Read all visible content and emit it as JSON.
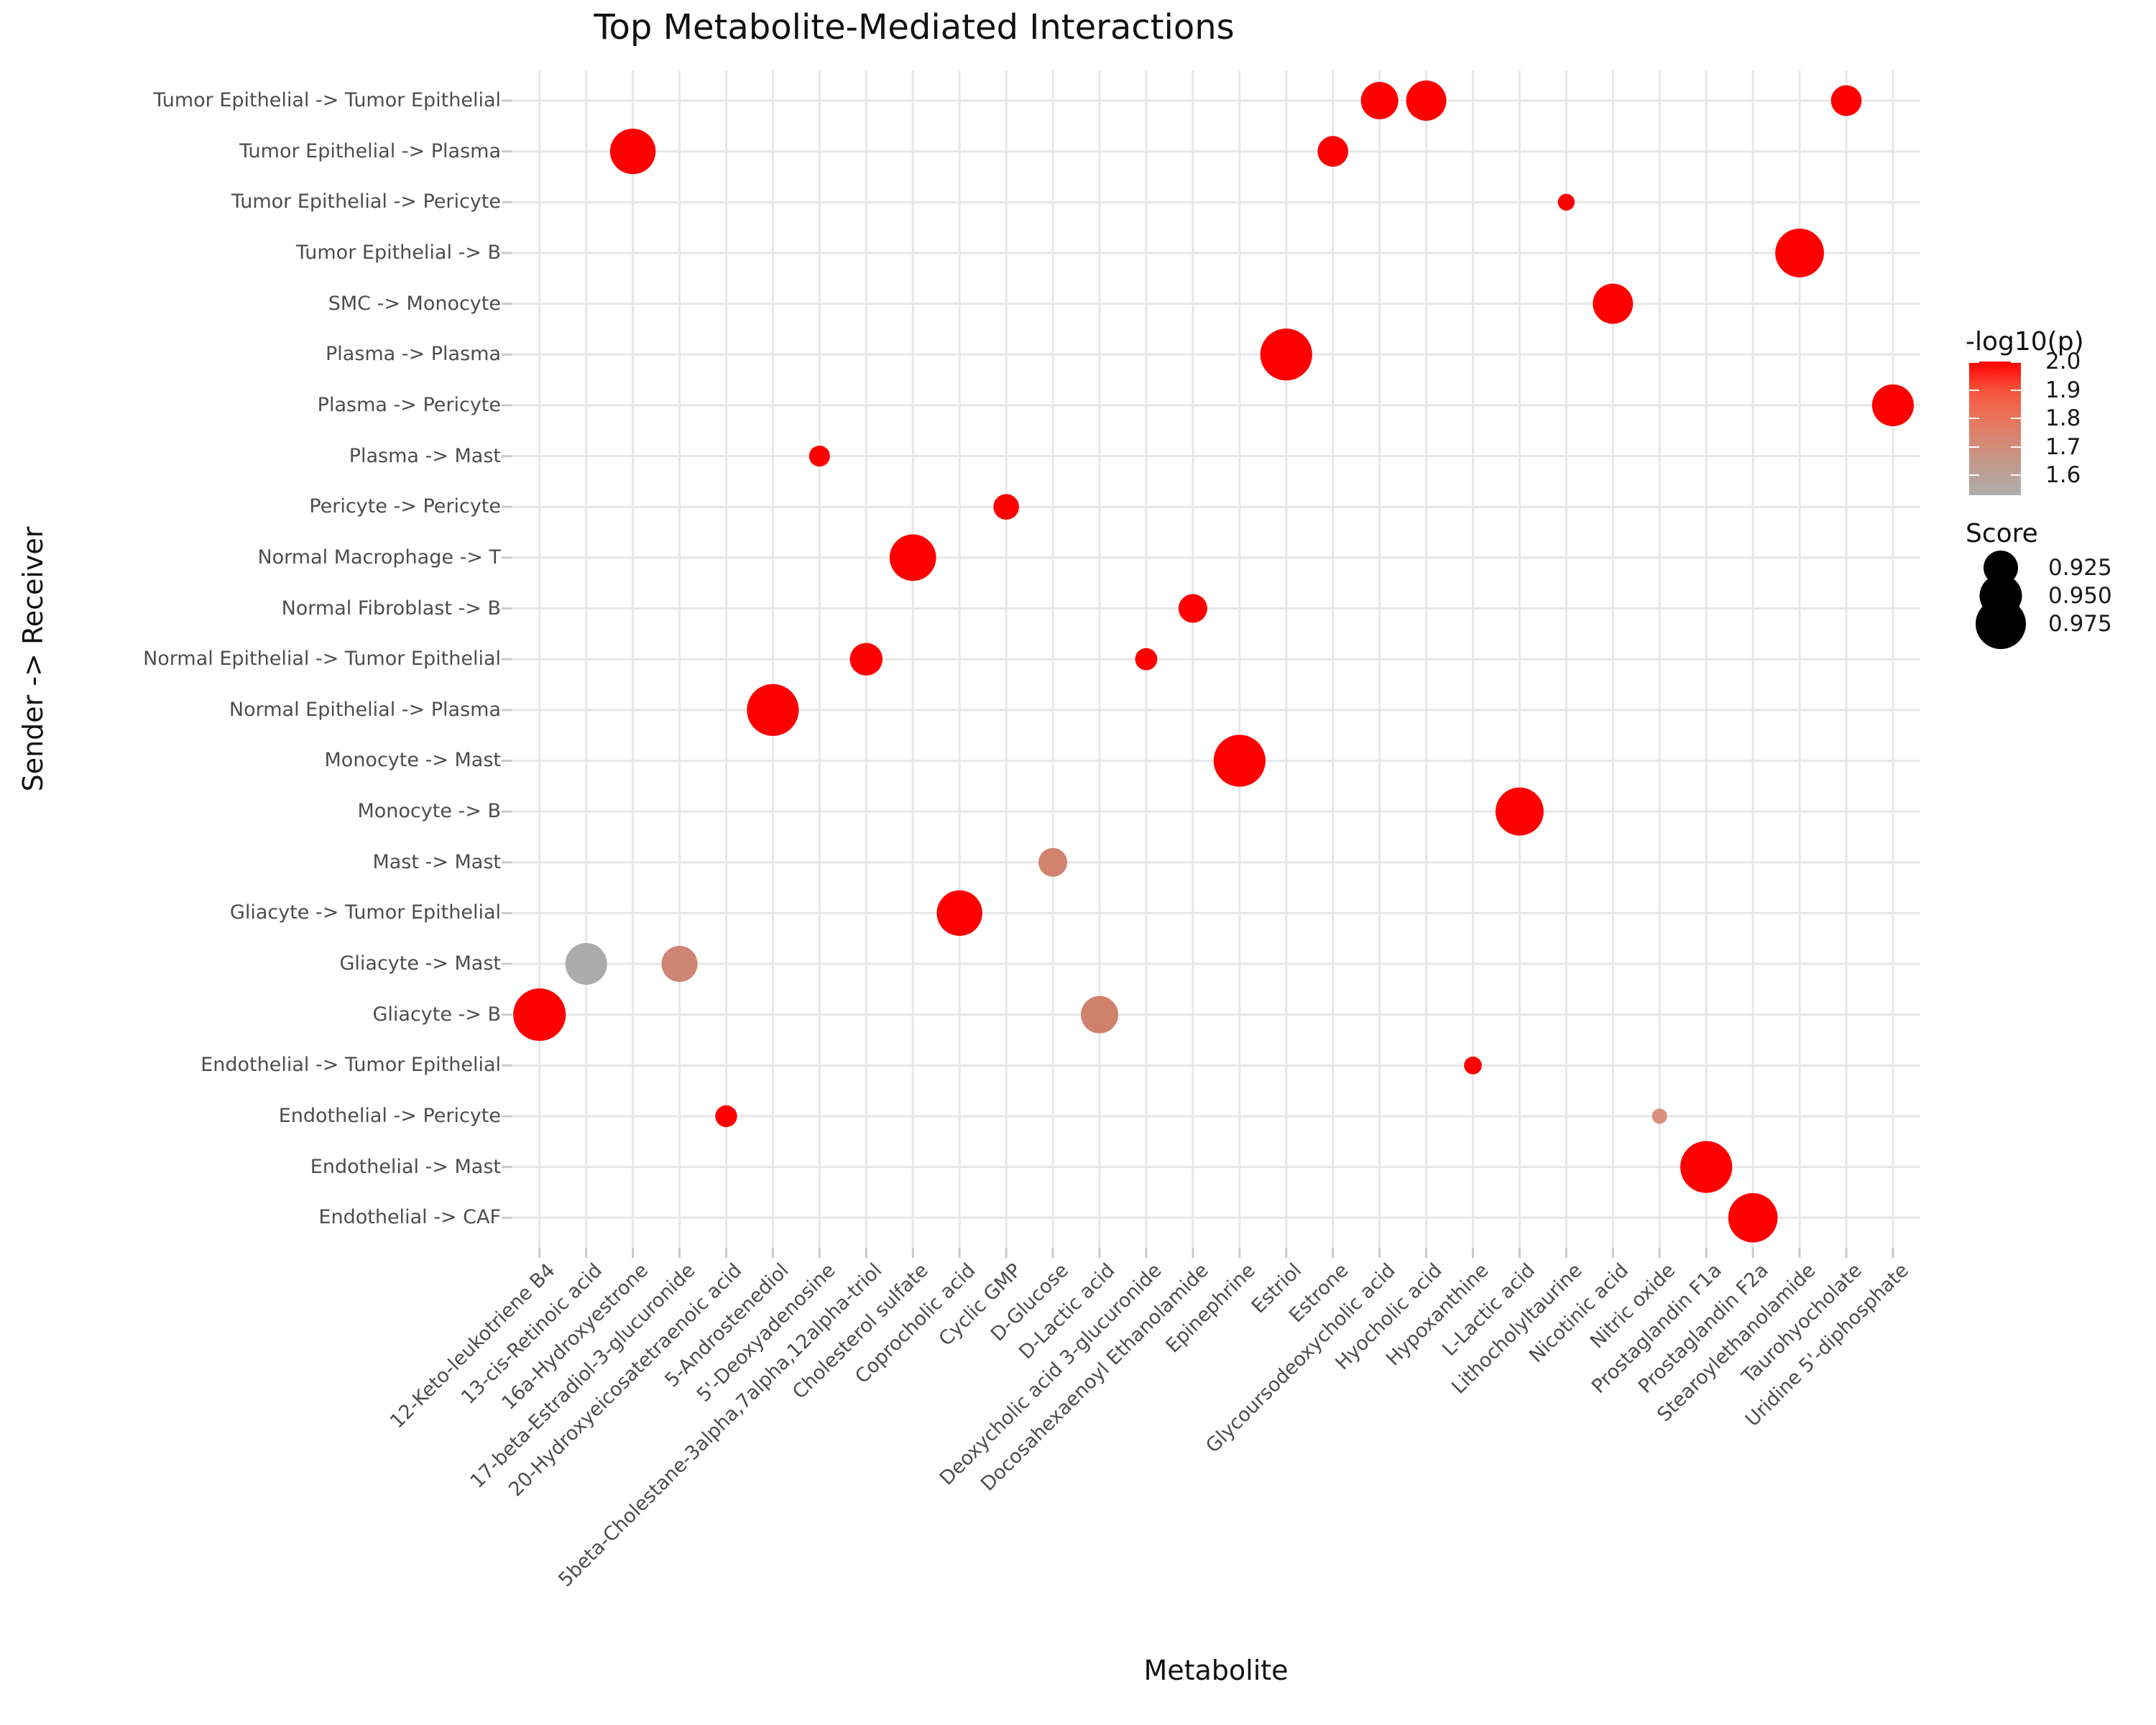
{
  "chart_data": {
    "type": "scatter",
    "title": "Top Metabolite-Mediated Interactions",
    "xlabel": "Metabolite",
    "ylabel": "Sender -> Receiver",
    "grid": true,
    "background": "#ffffff",
    "grid_color": "#e7e7e7",
    "tick_color": "#c9c9c9",
    "accent_red": "#ff0000",
    "x_categories": [
      "12-Keto-leukotriene B4",
      "13-cis-Retinoic acid",
      "16a-Hydroxyestrone",
      "17-beta-Estradiol-3-glucuronide",
      "20-Hydroxyeicosatetraenoic acid",
      "5-Androstenediol",
      "5'-Deoxyadenosine",
      "5beta-Cholestane-3alpha,7alpha,12alpha-triol",
      "Cholesterol sulfate",
      "Coprocholic acid",
      "Cyclic GMP",
      "D-Glucose",
      "D-Lactic acid",
      "Deoxycholic acid 3-glucuronide",
      "Docosahexaenoyl Ethanolamide",
      "Epinephrine",
      "Estriol",
      "Estrone",
      "Glycoursodeoxycholic acid",
      "Hyocholic acid",
      "Hypoxanthine",
      "L-Lactic acid",
      "Lithocholyltaurine",
      "Nicotinic acid",
      "Nitric oxide",
      "Prostaglandin F1a",
      "Prostaglandin F2a",
      "Stearoylethanolamide",
      "Taurohyocholate",
      "Uridine 5'-diphosphate"
    ],
    "y_categories": [
      "Tumor Epithelial -> Tumor Epithelial",
      "Tumor Epithelial -> Plasma",
      "Tumor Epithelial -> Pericyte",
      "Tumor Epithelial -> B",
      "SMC -> Monocyte",
      "Plasma -> Plasma",
      "Plasma -> Pericyte",
      "Plasma -> Mast",
      "Pericyte -> Pericyte",
      "Normal Macrophage -> T",
      "Normal Fibroblast -> B",
      "Normal Epithelial -> Tumor Epithelial",
      "Normal Epithelial -> Plasma",
      "Monocyte -> Mast",
      "Monocyte -> B",
      "Mast -> Mast",
      "Gliacyte -> Tumor Epithelial",
      "Gliacyte -> Mast",
      "Gliacyte -> B",
      "Endothelial -> Tumor Epithelial",
      "Endothelial -> Pericyte",
      "Endothelial -> Mast",
      "Endothelial -> CAF"
    ],
    "points": [
      {
        "metabolite": "12-Keto-leukotriene B4",
        "pair": "Gliacyte -> B",
        "score": 0.982,
        "neglog10p": 2.0,
        "color": "#ff0000"
      },
      {
        "metabolite": "13-cis-Retinoic acid",
        "pair": "Gliacyte -> Mast",
        "score": 0.948,
        "neglog10p": 1.53,
        "color": "#ababab"
      },
      {
        "metabolite": "16a-Hydroxyestrone",
        "pair": "Tumor Epithelial -> Plasma",
        "score": 0.96,
        "neglog10p": 2.0,
        "color": "#ff0000"
      },
      {
        "metabolite": "17-beta-Estradiol-3-glucuronide",
        "pair": "Gliacyte -> Mast",
        "score": 0.93,
        "neglog10p": 1.63,
        "color": "#cd8673"
      },
      {
        "metabolite": "20-Hydroxyeicosatetraenoic acid",
        "pair": "Endothelial -> Pericyte",
        "score": 0.885,
        "neglog10p": 2.0,
        "color": "#ff0000"
      },
      {
        "metabolite": "5-Androstenediol",
        "pair": "Normal Epithelial -> Plasma",
        "score": 0.98,
        "neglog10p": 2.0,
        "color": "#ff0000"
      },
      {
        "metabolite": "5'-Deoxyadenosine",
        "pair": "Plasma -> Mast",
        "score": 0.882,
        "neglog10p": 2.0,
        "color": "#ff0000"
      },
      {
        "metabolite": "5beta-Cholestane-3alpha,7alpha,12alpha-triol",
        "pair": "Normal Epithelial -> Tumor Epithelial",
        "score": 0.919,
        "neglog10p": 2.0,
        "color": "#ff0000"
      },
      {
        "metabolite": "Cholesterol sulfate",
        "pair": "Normal Macrophage -> T",
        "score": 0.963,
        "neglog10p": 2.0,
        "color": "#ff0000"
      },
      {
        "metabolite": "Coprocholic acid",
        "pair": "Gliacyte -> Tumor Epithelial",
        "score": 0.96,
        "neglog10p": 2.0,
        "color": "#ff0000"
      },
      {
        "metabolite": "Cyclic GMP",
        "pair": "Pericyte -> Pericyte",
        "score": 0.897,
        "neglog10p": 2.0,
        "color": "#ff0000"
      },
      {
        "metabolite": "D-Glucose",
        "pair": "Mast -> Mast",
        "score": 0.907,
        "neglog10p": 1.64,
        "color": "#d28370"
      },
      {
        "metabolite": "D-Lactic acid",
        "pair": "Gliacyte -> B",
        "score": 0.934,
        "neglog10p": 1.64,
        "color": "#d0816b"
      },
      {
        "metabolite": "Deoxycholic acid 3-glucuronide",
        "pair": "Normal Epithelial -> Tumor Epithelial",
        "score": 0.886,
        "neglog10p": 2.0,
        "color": "#ff0000"
      },
      {
        "metabolite": "Docosahexaenoyl Ethanolamide",
        "pair": "Normal Fibroblast -> B",
        "score": 0.907,
        "neglog10p": 2.0,
        "color": "#ff0000"
      },
      {
        "metabolite": "Epinephrine",
        "pair": "Monocyte -> Mast",
        "score": 0.98,
        "neglog10p": 2.0,
        "color": "#ff0000"
      },
      {
        "metabolite": "Estriol",
        "pair": "Plasma -> Plasma",
        "score": 0.98,
        "neglog10p": 2.0,
        "color": "#ff0000"
      },
      {
        "metabolite": "Estrone",
        "pair": "Tumor Epithelial -> Plasma",
        "score": 0.913,
        "neglog10p": 2.0,
        "color": "#ff0000"
      },
      {
        "metabolite": "Glycoursodeoxycholic acid",
        "pair": "Tumor Epithelial -> Tumor Epithelial",
        "score": 0.934,
        "neglog10p": 2.0,
        "color": "#ff0000"
      },
      {
        "metabolite": "Hyocholic acid",
        "pair": "Tumor Epithelial -> Tumor Epithelial",
        "score": 0.943,
        "neglog10p": 2.0,
        "color": "#ff0000"
      },
      {
        "metabolite": "Hypoxanthine",
        "pair": "Endothelial -> Tumor Epithelial",
        "score": 0.872,
        "neglog10p": 2.0,
        "color": "#ff0000"
      },
      {
        "metabolite": "L-Lactic acid",
        "pair": "Monocyte -> B",
        "score": 0.968,
        "neglog10p": 2.0,
        "color": "#ff0000"
      },
      {
        "metabolite": "Lithocholyltaurine",
        "pair": "Tumor Epithelial -> Pericyte",
        "score": 0.869,
        "neglog10p": 2.0,
        "color": "#ff0000"
      },
      {
        "metabolite": "Nicotinic acid",
        "pair": "SMC -> Monocyte",
        "score": 0.943,
        "neglog10p": 2.0,
        "color": "#ff0000"
      },
      {
        "metabolite": "Nitric oxide",
        "pair": "Endothelial -> Pericyte",
        "score": 0.864,
        "neglog10p": 1.62,
        "color": "#d9917e"
      },
      {
        "metabolite": "Prostaglandin F1a",
        "pair": "Endothelial -> Mast",
        "score": 0.98,
        "neglog10p": 2.0,
        "color": "#ff0000"
      },
      {
        "metabolite": "Prostaglandin F2a",
        "pair": "Endothelial -> CAF",
        "score": 0.972,
        "neglog10p": 2.0,
        "color": "#ff0000"
      },
      {
        "metabolite": "Stearoylethanolamide",
        "pair": "Tumor Epithelial -> B",
        "score": 0.97,
        "neglog10p": 2.0,
        "color": "#ff0000"
      },
      {
        "metabolite": "Taurohyocholate",
        "pair": "Tumor Epithelial -> Tumor Epithelial",
        "score": 0.913,
        "neglog10p": 2.0,
        "color": "#ff0000"
      },
      {
        "metabolite": "Uridine 5'-diphosphate",
        "pair": "Plasma -> Pericyte",
        "score": 0.948,
        "neglog10p": 2.0,
        "color": "#ff0000"
      }
    ],
    "legend": {
      "position": "right",
      "color": {
        "title": "-log10(p)",
        "ticks": [
          {
            "label": "2.0",
            "value": 2.0
          },
          {
            "label": "1.9",
            "value": 1.9
          },
          {
            "label": "1.8",
            "value": 1.8
          },
          {
            "label": "1.7",
            "value": 1.7
          },
          {
            "label": "1.6",
            "value": 1.6
          }
        ],
        "top_value": 2.0,
        "bottom_value": 1.53,
        "stops": [
          {
            "pos": 0.0,
            "color": "#ff0000"
          },
          {
            "pos": 0.211,
            "color": "#f8523a"
          },
          {
            "pos": 0.425,
            "color": "#e9745c"
          },
          {
            "pos": 0.635,
            "color": "#d18d7a"
          },
          {
            "pos": 0.846,
            "color": "#bba197"
          },
          {
            "pos": 1.0,
            "color": "#adadad"
          }
        ]
      },
      "size": {
        "title": "Score",
        "entries": [
          {
            "label": "0.925",
            "score": 0.925
          },
          {
            "label": "0.950",
            "score": 0.95
          },
          {
            "label": "0.975",
            "score": 0.975
          }
        ]
      }
    }
  }
}
